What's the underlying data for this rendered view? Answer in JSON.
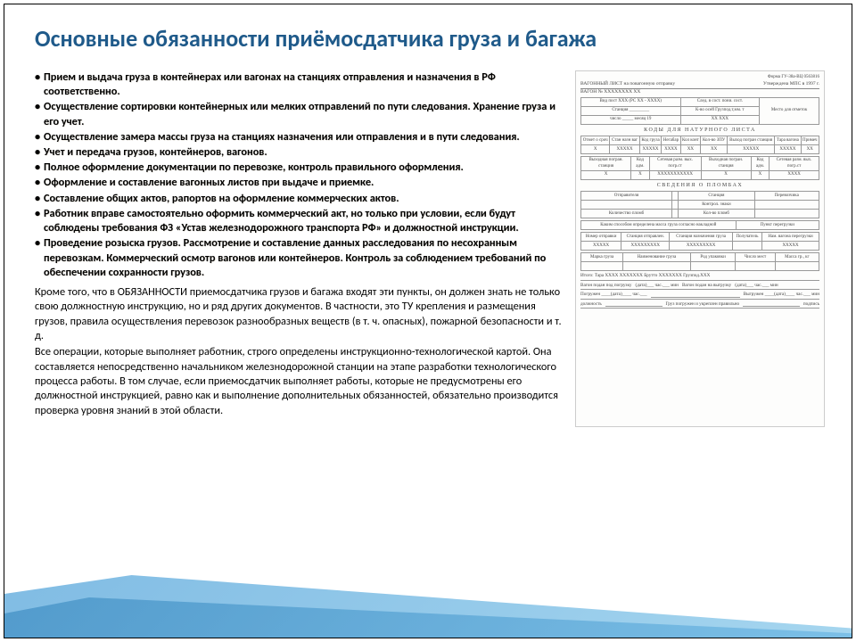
{
  "title_color": "#1f5a8a",
  "title": "Основные обязанности приёмосдатчика груза и багажа",
  "bullets": [
    "Прием и выдача груза в контейнерах или вагонах на станциях отправления и назначения в РФ соответственно.",
    "Осуществление сортировки контейнерных или мелких отправлений по пути следования. Хранение груза и его учет.",
    "Осуществление замера массы груза на станциях назначения или отправления и в пути следования.",
    "Учет и передача грузов, контейнеров, вагонов.",
    "Полное оформление документации по перевозке, контроль правильного оформления.",
    "Оформление и составление вагонных листов при выдаче и приемке.",
    "Составление общих актов, рапортов на оформление коммерческих актов.",
    "Работник вправе самостоятельно оформить коммерческий акт, но только при условии, если будут соблюдены требования ФЗ «Устав железнодорожного транспорта РФ» и должностной инструкции.",
    "Проведение розыска грузов. Рассмотрение и составление данных расследования по несохранным перевозкам. Коммерческий осмотр вагонов или контейнеров. Контроль за соблюдением требований по обеспечении сохранности грузов."
  ],
  "para1": "Кроме того, что в ОБЯЗАННОСТИ приемосдатчика грузов и багажа входят эти пункты, он должен знать не только свою должностную инструкцию, но и ряд других документов. В частности, это ТУ крепления и размещения грузов, правила осуществления перевозок разнообразных веществ (в т. ч. опасных), пожарной безопасности и т. д.",
  "para2": "Все операции, которые выполняет работник, строго определены инструкционно-технологической картой. Она составляется непосредственно начальником железнодорожной станции на этапе разработки технологического процесса работы. В том случае, если приемосдатчик выполняет работы, которые не предусмотрены его должностной инструкцией, равно как и выполнение дополнительных обязанностей, обязательно производится проверка уровня знаний в этой области.",
  "doc": {
    "form": "Форма ГУ-38а-ВЦ   0563816",
    "h1": "ВАГОННЫЙ ЛИСТ на повагонную отправку",
    "h1r": "Утверждена МПС в 1997 г.",
    "h2": "ВАГОН № ХХХХХХХХ ХХ",
    "row1a": "Вид пост ХХХ (РС ХХ - ХХХХ)",
    "row1b": "След. в сост. пони. сост.",
    "row1c": "Место для отметок",
    "row2a": "Станция _________",
    "row2b": "К-во осей Грузпод.т,мм. т",
    "row3a": "число _____ месяц 19",
    "row3b": "ХХ   ХХХ",
    "row3c": "ХХХХХ",
    "sec1": "КОДЫ ДЛЯ НАТУРНОГО ЛИСТА",
    "cols1": [
      "Отмет о сроч",
      "Стан назн ваг",
      "Код груза",
      "Негабар",
      "Кол конт",
      "Кол-во ЗПУ",
      "Выход погран станция",
      "Тара вагона",
      "Примеч"
    ],
    "vals1": [
      "Х",
      "ХХХХХ",
      "ХХХХХ",
      "ХХХХ",
      "ХХ",
      "ХХ",
      "ХХХХХ",
      "ХХХХХ",
      "ХХ"
    ],
    "cols2": [
      "Выходная погран. станция",
      "Код адм.",
      "Сетевая разм. вых. погр.ст",
      "Выходная погран. станция",
      "Код адм.",
      "Сетевая разм. вых. погр.ст"
    ],
    "vals2": [
      "Х",
      "Х",
      "ХХХХХХХХХХХ",
      "Х",
      "Х",
      "ХХХХ"
    ],
    "sec2": "СВЕДЕНИЯ О ПЛОМБАХ",
    "cols3": [
      "Отправителя",
      "",
      "Станция",
      "Перевозчика"
    ],
    "rows3": [
      "",
      "",
      "Контрол. знаки",
      ""
    ],
    "rows3b": [
      "Количество пломб",
      "",
      "Кол-во пломб",
      ""
    ],
    "line1a": "Каким способом определена масса груза согласно накладной",
    "line1b": "Пункт перегрузки",
    "cols4": [
      "Номер отправки",
      "Станция отправлен.",
      "Станция назначения груза",
      "Получатель",
      "Нам. вагона перегрузки"
    ],
    "vals4": [
      "ХХХХХ",
      "ХХХХХХХХХ",
      "ХХХХХХХХХ",
      "",
      "ХХХХХ"
    ],
    "cols5": [
      "Марка груза",
      "Наименование груза",
      "Род упаковки",
      "Число мест",
      "Масса гр., кг"
    ],
    "line2": "Итого: Тара ХХХХ ХХХХХХХ   Брутто ХХХХХХХ   Грузпод.ХХХ",
    "line3a": "Вагон подан под погрузку",
    "line3b": "(дата)___ час.___ мин",
    "line3c": "Вагон подан на выгрузку",
    "line4a": "Погружен ____(дата)____ час.___",
    "line4b": "Выгружен ____(дата)____ час.___ мин",
    "line5a": "должность",
    "line5b": "Груз погружен и укреплен правильно",
    "line5c": "подпись"
  }
}
